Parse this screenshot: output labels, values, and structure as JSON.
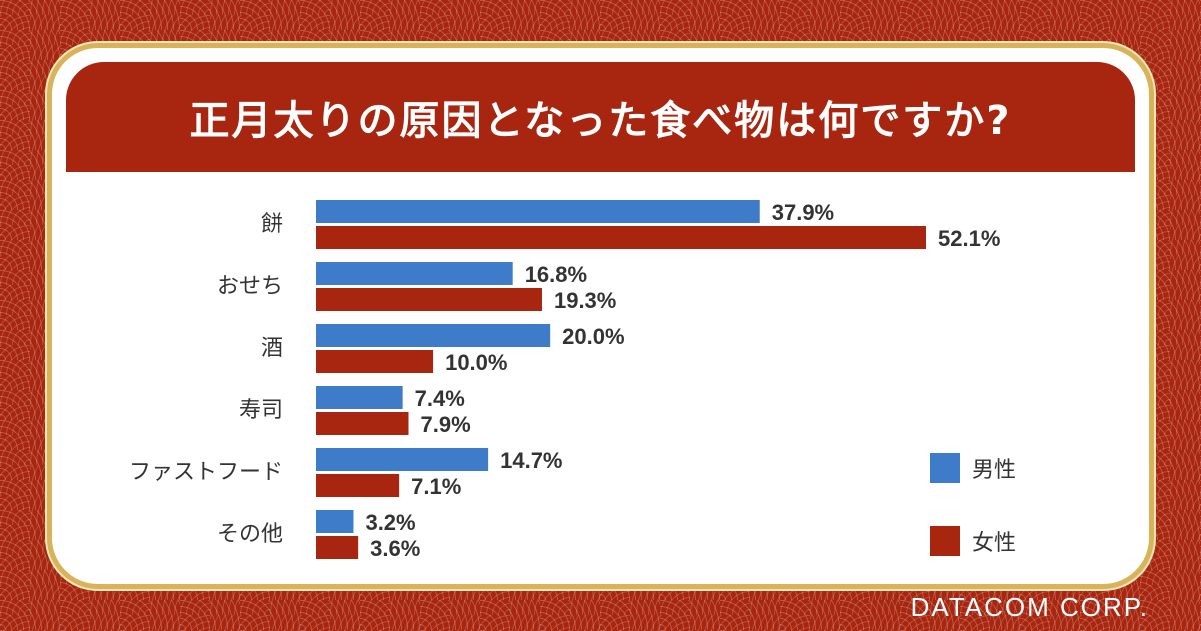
{
  "title": "正月太りの原因となった食べ物は何ですか?",
  "brand": "DATACOM CORP.",
  "colors": {
    "male": "#3e7cc9",
    "female": "#a8260f",
    "accent": "#a8260f",
    "gold": "#d8b35a"
  },
  "chart_data": {
    "type": "bar",
    "orientation": "horizontal",
    "title": "正月太りの原因となった食べ物は何ですか?",
    "categories": [
      "餅",
      "おせち",
      "酒",
      "寿司",
      "ファストフード",
      "その他"
    ],
    "series": [
      {
        "name": "男性",
        "values": [
          37.9,
          16.8,
          20.0,
          7.4,
          14.7,
          3.2
        ],
        "labels": [
          "37.9%",
          "16.8%",
          "20.0%",
          "7.4%",
          "14.7%",
          "3.2%"
        ]
      },
      {
        "name": "女性",
        "values": [
          52.1,
          19.3,
          10.0,
          7.9,
          7.1,
          3.6
        ],
        "labels": [
          "52.1%",
          "19.3%",
          "10.0%",
          "7.9%",
          "7.1%",
          "3.6%"
        ]
      }
    ],
    "xlim": [
      0,
      60
    ],
    "grid": false,
    "legend": "bottom-right"
  }
}
